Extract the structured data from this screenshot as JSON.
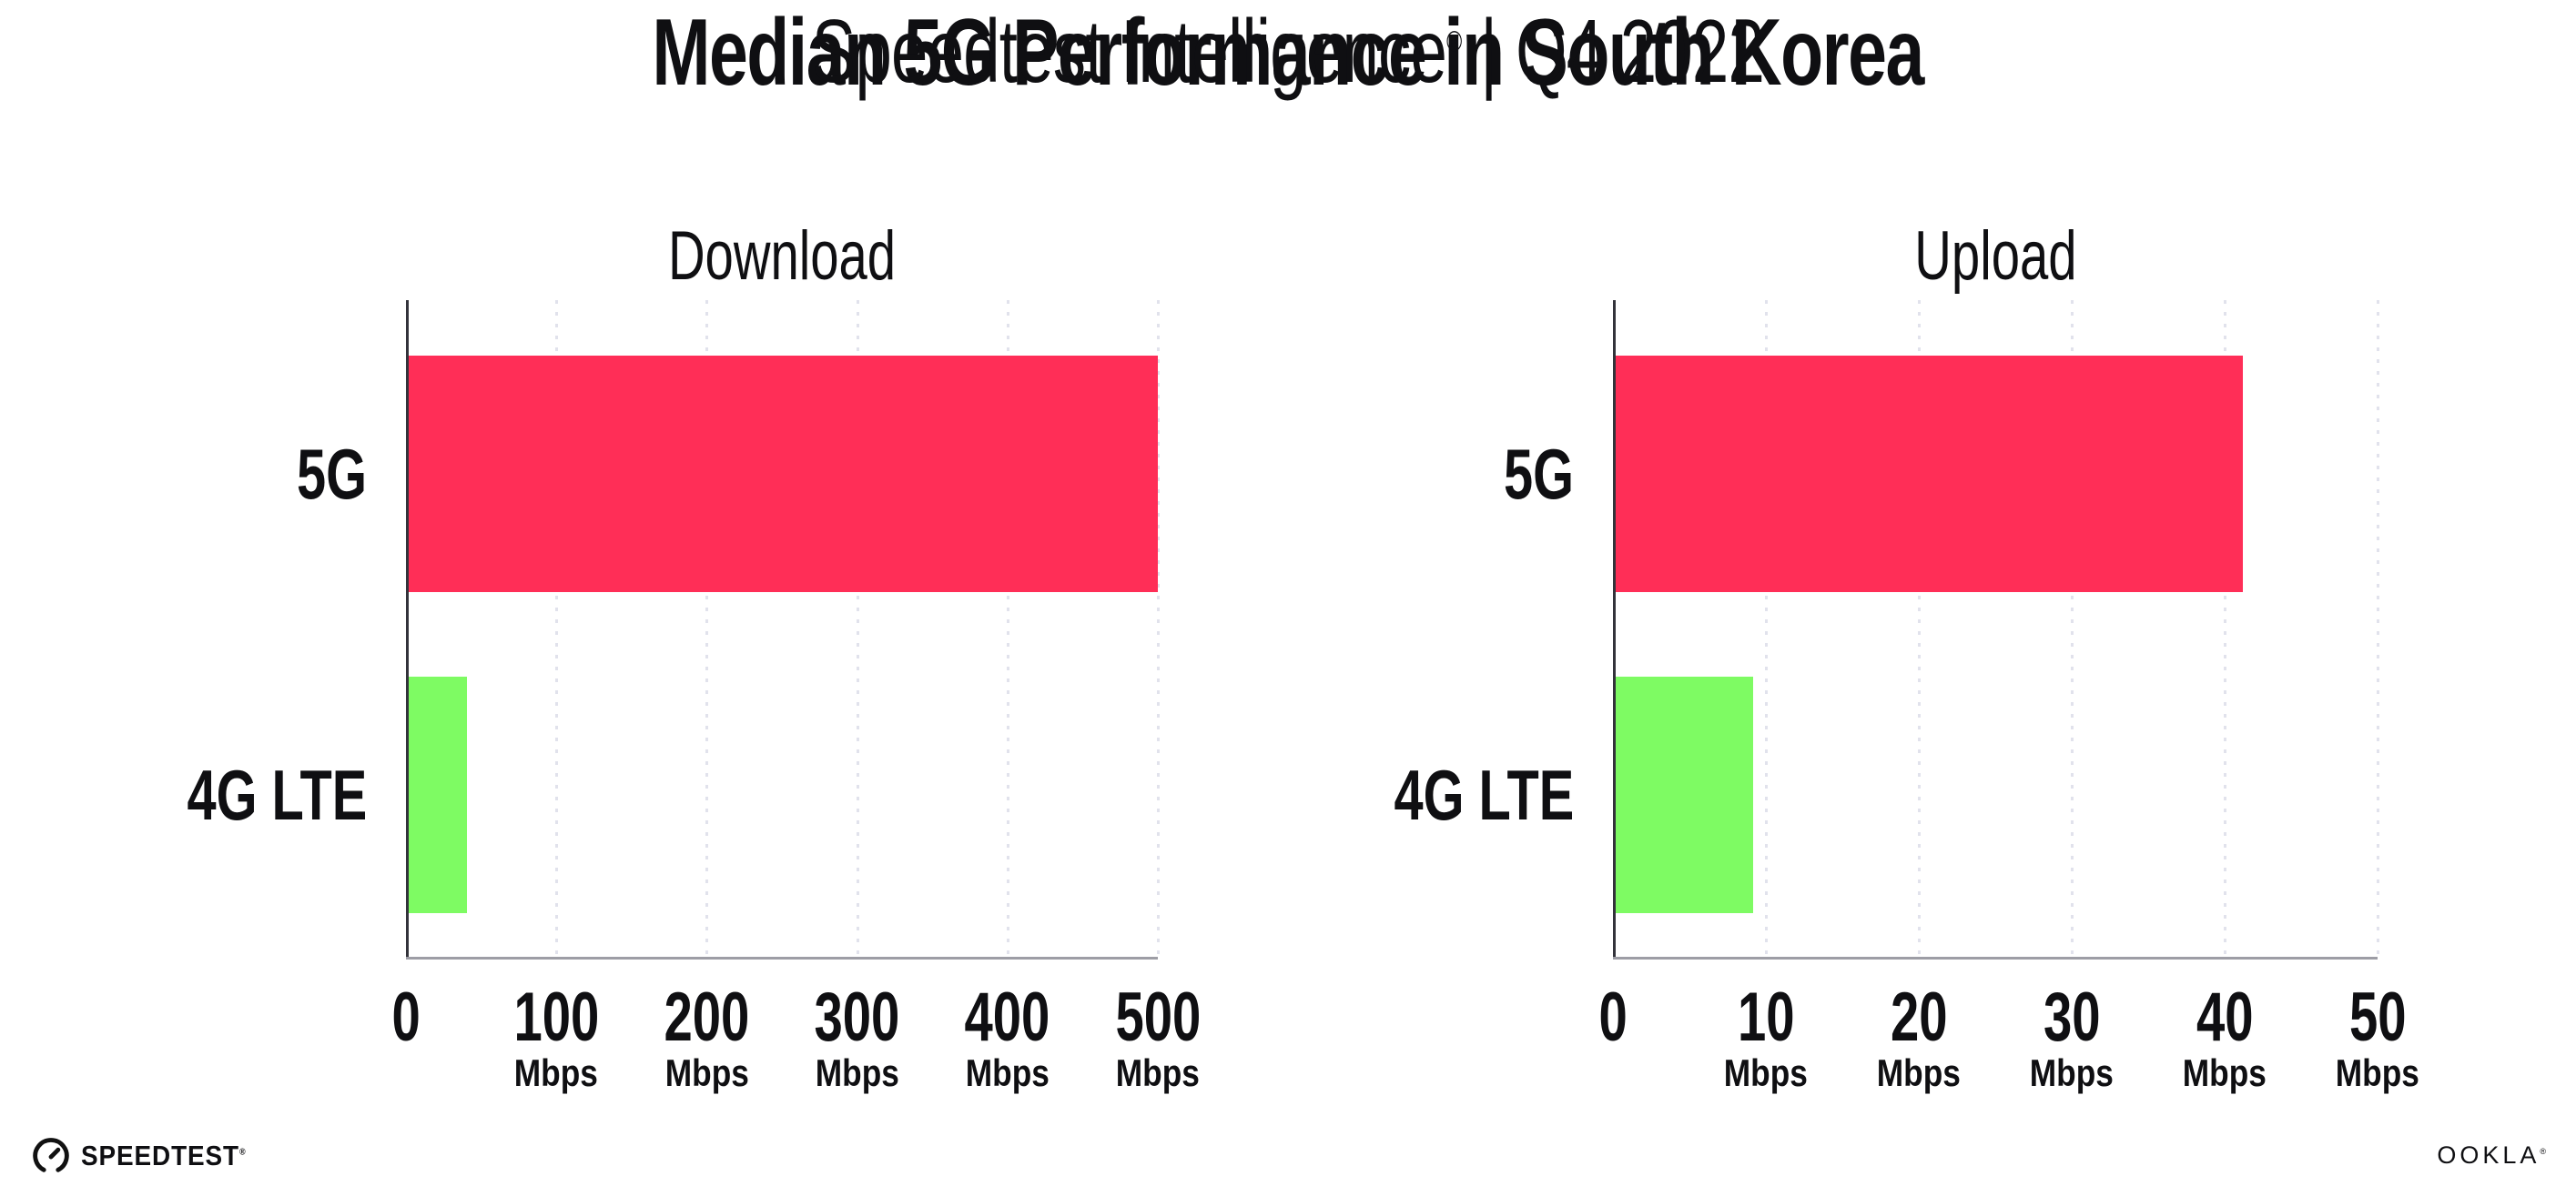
{
  "header": {
    "title": "Median 5G Performance in South Korea",
    "subtitle_brand": "Speedtest Intelligence",
    "subtitle_reg": "®",
    "subtitle_sep": "|",
    "subtitle_period": "Q4 2022"
  },
  "footer": {
    "speedtest_logo_text": "SPEEDTEST",
    "speedtest_reg": "®",
    "ookla_logo_text": "OOKLA",
    "ookla_reg": "®"
  },
  "colors": {
    "bar_5g": "#FF2E57",
    "bar_4g_lte": "#7EFB63",
    "x_axis_line": "#9D9DA5",
    "y_axis_line": "#33333B",
    "grid_dots": "#E1E2EC",
    "text": "#0F0F12",
    "background": "#FFFFFF"
  },
  "chart_data": [
    {
      "type": "bar",
      "orientation": "horizontal",
      "title": "Download",
      "categories": [
        "5G",
        "4G LTE"
      ],
      "values": [
        498,
        39
      ],
      "unit": "Mbps",
      "xlabel": "",
      "ylabel": "",
      "xlim": [
        0,
        500
      ],
      "xticks": [
        0,
        100,
        200,
        300,
        400,
        500
      ],
      "grid": "vertical-dotted",
      "legend": "none",
      "bar_colors": [
        "#FF2E57",
        "#7EFB63"
      ]
    },
    {
      "type": "bar",
      "orientation": "horizontal",
      "title": "Upload",
      "categories": [
        "5G",
        "4G LTE"
      ],
      "values": [
        41,
        9
      ],
      "unit": "Mbps",
      "xlabel": "",
      "ylabel": "",
      "xlim": [
        0,
        50
      ],
      "xticks": [
        0,
        10,
        20,
        30,
        40,
        50
      ],
      "grid": "vertical-dotted",
      "legend": "none",
      "bar_colors": [
        "#FF2E57",
        "#7EFB63"
      ]
    }
  ]
}
